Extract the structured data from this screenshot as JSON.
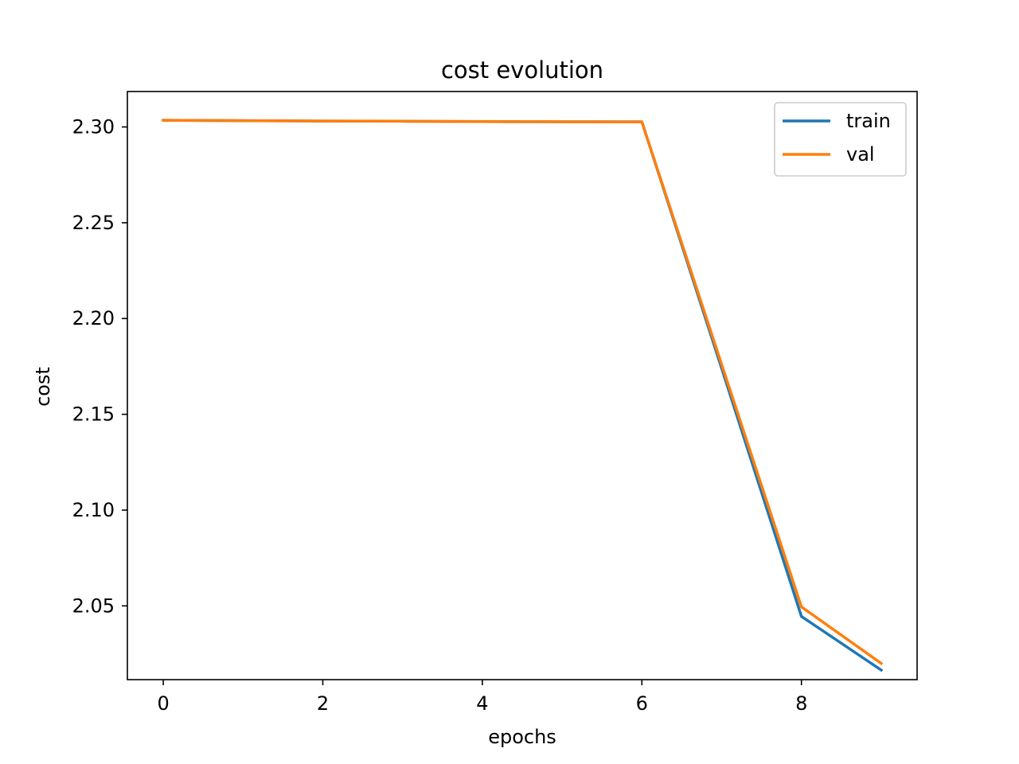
{
  "chart_data": {
    "type": "line",
    "title": "cost evolution",
    "xlabel": "epochs",
    "ylabel": "cost",
    "xlim": [
      -0.45,
      9.45
    ],
    "ylim": [
      2.0115,
      2.3185
    ],
    "xticks": [
      0,
      2,
      4,
      6,
      8
    ],
    "xtick_labels": [
      "0",
      "2",
      "4",
      "6",
      "8"
    ],
    "yticks": [
      2.05,
      2.1,
      2.15,
      2.2,
      2.25,
      2.3
    ],
    "ytick_labels": [
      "2.05",
      "2.10",
      "2.15",
      "2.20",
      "2.25",
      "2.30"
    ],
    "grid": false,
    "legend_position": "upper right",
    "x": [
      0,
      1,
      2,
      3,
      4,
      5,
      6,
      7,
      8,
      9
    ],
    "series": [
      {
        "name": "train",
        "color": "#1f77b4",
        "values": [
          2.3035,
          2.3033,
          2.3031,
          2.303,
          2.3028,
          2.3027,
          2.3027,
          2.174,
          2.0445,
          2.0165
        ]
      },
      {
        "name": "val",
        "color": "#ff7f0e",
        "values": [
          2.3035,
          2.3033,
          2.3031,
          2.303,
          2.3028,
          2.3027,
          2.3026,
          2.176,
          2.0495,
          2.02
        ]
      }
    ]
  }
}
